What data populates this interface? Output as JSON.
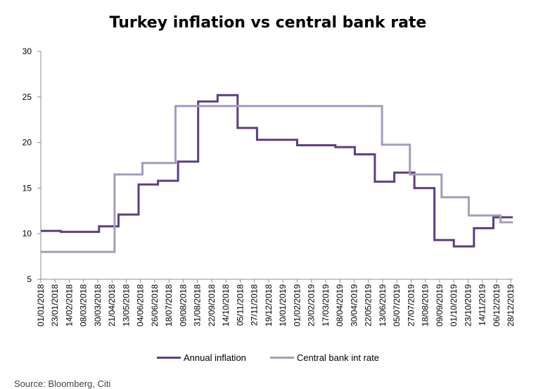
{
  "source_note": "Source: Bloomberg, Citi",
  "chart_data": {
    "type": "line",
    "title": "Turkey inflation vs central bank rate",
    "xlabel": "",
    "ylabel": "",
    "ylim": [
      5,
      30
    ],
    "yticks": [
      5,
      10,
      15,
      20,
      25,
      30
    ],
    "xlim": [
      "2018-01-01",
      "2019-12-31"
    ],
    "xtick_labels": [
      "01/01/2018",
      "23/01/2018",
      "14/02/2018",
      "08/03/2018",
      "30/03/2018",
      "21/04/2018",
      "13/05/2018",
      "04/06/2018",
      "26/06/2018",
      "18/07/2018",
      "09/08/2018",
      "31/08/2018",
      "22/09/2018",
      "14/10/2018",
      "05/11/2018",
      "27/11/2018",
      "19/12/2018",
      "10/01/2019",
      "01/02/2019",
      "23/02/2019",
      "17/03/2019",
      "08/04/2019",
      "30/04/2019",
      "22/05/2019",
      "13/06/2019",
      "05/07/2019",
      "27/07/2019",
      "18/08/2019",
      "09/09/2019",
      "01/10/2019",
      "23/10/2019",
      "14/11/2019",
      "06/12/2019",
      "28/12/2019"
    ],
    "grid": false,
    "legend_position": "bottom",
    "series": [
      {
        "name": "Annual inflation",
        "color": "#5c3e83",
        "step": true,
        "points": [
          [
            "2018-01-01",
            10.3
          ],
          [
            "2018-02-01",
            10.2
          ],
          [
            "2018-04-01",
            10.8
          ],
          [
            "2018-05-01",
            12.1
          ],
          [
            "2018-06-01",
            15.4
          ],
          [
            "2018-07-01",
            15.8
          ],
          [
            "2018-08-01",
            17.9
          ],
          [
            "2018-09-01",
            24.5
          ],
          [
            "2018-10-01",
            25.2
          ],
          [
            "2018-11-01",
            21.6
          ],
          [
            "2018-12-01",
            20.3
          ],
          [
            "2019-01-01",
            20.3
          ],
          [
            "2019-02-01",
            19.7
          ],
          [
            "2019-04-01",
            19.5
          ],
          [
            "2019-05-01",
            18.7
          ],
          [
            "2019-06-01",
            15.7
          ],
          [
            "2019-07-01",
            16.7
          ],
          [
            "2019-08-01",
            15.0
          ],
          [
            "2019-09-01",
            9.3
          ],
          [
            "2019-10-01",
            8.6
          ],
          [
            "2019-11-01",
            10.6
          ],
          [
            "2019-12-01",
            11.8
          ],
          [
            "2019-12-31",
            11.8
          ]
        ]
      },
      {
        "name": "Central bank int rate",
        "color": "#a59cbd",
        "step": true,
        "points": [
          [
            "2018-01-01",
            8.0
          ],
          [
            "2018-04-25",
            16.5
          ],
          [
            "2018-06-07",
            17.75
          ],
          [
            "2018-07-28",
            24.0
          ],
          [
            "2019-06-12",
            19.75
          ],
          [
            "2019-07-25",
            16.5
          ],
          [
            "2019-09-12",
            14.0
          ],
          [
            "2019-10-24",
            12.0
          ],
          [
            "2019-12-12",
            11.25
          ],
          [
            "2019-12-31",
            11.25
          ]
        ]
      }
    ]
  }
}
